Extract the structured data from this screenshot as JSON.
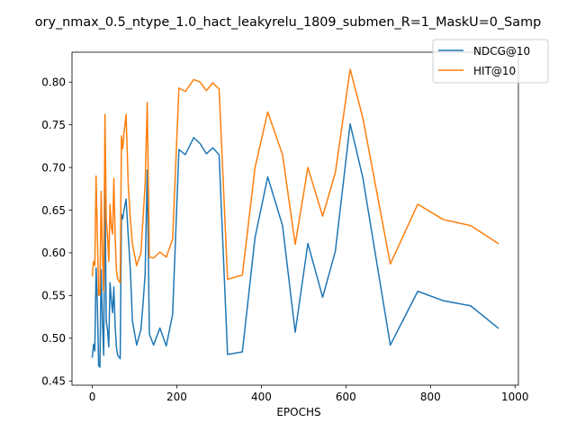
{
  "chart_data": {
    "type": "line",
    "title": "ory_nmax_0.5_ntype_1.0_hact_leakyrelu_1809_submen_R=1_MaskU=0_Samp",
    "xlabel": "EPOCHS",
    "ylabel": "",
    "xlim": [
      -48,
      1008
    ],
    "ylim": [
      0.445,
      0.835
    ],
    "xticks": [
      0,
      200,
      400,
      600,
      800,
      1000
    ],
    "yticks": [
      0.45,
      0.5,
      0.55,
      0.6,
      0.65,
      0.7,
      0.75,
      0.8
    ],
    "legend_position": "top-right",
    "grid": false,
    "series": [
      {
        "name": "NDCG@10",
        "color": "#1f77b4",
        "x": [
          0,
          3,
          6,
          9,
          12,
          15,
          18,
          21,
          24,
          27,
          30,
          33,
          36,
          39,
          42,
          45,
          48,
          51,
          54,
          57,
          60,
          63,
          66,
          69,
          72,
          75,
          80,
          85,
          90,
          95,
          105,
          115,
          120,
          125,
          130,
          135,
          145,
          160,
          175,
          190,
          205,
          220,
          240,
          255,
          270,
          285,
          300,
          320,
          355,
          385,
          415,
          450,
          480,
          510,
          545,
          575,
          610,
          640,
          705,
          770,
          830,
          895,
          960
        ],
        "y": [
          0.478,
          0.493,
          0.485,
          0.582,
          0.54,
          0.468,
          0.466,
          0.58,
          0.52,
          0.48,
          0.677,
          0.52,
          0.51,
          0.49,
          0.565,
          0.545,
          0.53,
          0.56,
          0.515,
          0.49,
          0.48,
          0.478,
          0.476,
          0.645,
          0.64,
          0.65,
          0.663,
          0.62,
          0.58,
          0.52,
          0.492,
          0.51,
          0.54,
          0.575,
          0.697,
          0.505,
          0.492,
          0.512,
          0.491,
          0.528,
          0.721,
          0.715,
          0.735,
          0.728,
          0.716,
          0.723,
          0.715,
          0.481,
          0.484,
          0.618,
          0.689,
          0.632,
          0.507,
          0.611,
          0.548,
          0.602,
          0.751,
          0.688,
          0.492,
          0.555,
          0.544,
          0.538,
          0.512
        ]
      },
      {
        "name": "HIT@10",
        "color": "#ff7f0e",
        "x": [
          0,
          3,
          6,
          9,
          12,
          15,
          18,
          21,
          24,
          27,
          30,
          33,
          36,
          39,
          42,
          45,
          48,
          51,
          54,
          57,
          60,
          63,
          66,
          69,
          72,
          75,
          80,
          85,
          90,
          95,
          105,
          115,
          120,
          125,
          130,
          135,
          145,
          160,
          175,
          190,
          205,
          220,
          240,
          255,
          270,
          285,
          300,
          320,
          355,
          385,
          415,
          450,
          480,
          510,
          545,
          575,
          610,
          640,
          705,
          770,
          830,
          895,
          960
        ],
        "y": [
          0.573,
          0.59,
          0.585,
          0.69,
          0.62,
          0.55,
          0.552,
          0.672,
          0.6,
          0.555,
          0.762,
          0.64,
          0.62,
          0.59,
          0.657,
          0.63,
          0.622,
          0.687,
          0.62,
          0.58,
          0.57,
          0.567,
          0.565,
          0.737,
          0.722,
          0.74,
          0.762,
          0.68,
          0.64,
          0.61,
          0.585,
          0.6,
          0.64,
          0.68,
          0.776,
          0.595,
          0.594,
          0.601,
          0.595,
          0.616,
          0.793,
          0.789,
          0.803,
          0.8,
          0.79,
          0.799,
          0.792,
          0.569,
          0.574,
          0.7,
          0.765,
          0.715,
          0.61,
          0.7,
          0.643,
          0.694,
          0.815,
          0.758,
          0.587,
          0.657,
          0.639,
          0.632,
          0.611
        ]
      }
    ]
  }
}
